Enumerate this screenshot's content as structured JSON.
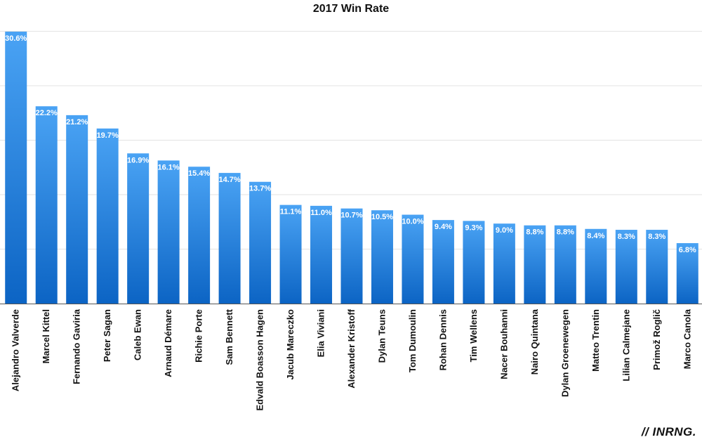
{
  "chart_data": {
    "type": "bar",
    "title": "2017 Win Rate",
    "xlabel": "",
    "ylabel": "",
    "ylim": [
      0,
      31
    ],
    "grid": true,
    "bar_color_top": "#4aa3f4",
    "bar_color_bottom": "#0c64c4",
    "categories": [
      "Alejandro Valverde",
      "Marcel Kittel",
      "Fernando Gaviria",
      "Peter Sagan",
      "Caleb Ewan",
      "Arnaud Démare",
      "Richie Porte",
      "Sam Bennett",
      "Edvald Boasson Hagen",
      "Jacub Mareczko",
      "Elia Viviani",
      "Alexander Kristoff",
      "Dylan Teuns",
      "Tom Dumoulin",
      "Rohan Dennis",
      "Tim Wellens",
      "Nacer Bouhanni",
      "Nairo Quintana",
      "Dylan Groenewegen",
      "Matteo Trentin",
      "Lilian Calmejane",
      "Primož Roglič",
      "Marco Canola"
    ],
    "values": [
      30.6,
      22.2,
      21.2,
      19.7,
      16.9,
      16.1,
      15.4,
      14.7,
      13.7,
      11.1,
      11.0,
      10.7,
      10.5,
      10.0,
      9.4,
      9.3,
      9.0,
      8.8,
      8.8,
      8.4,
      8.3,
      8.3,
      6.8
    ],
    "data_labels": [
      "30.6%",
      "22.2%",
      "21.2%",
      "19.7%",
      "16.9%",
      "16.1%",
      "15.4%",
      "14.7%",
      "13.7%",
      "11.1%",
      "11.0%",
      "10.7%",
      "10.5%",
      "10.0%",
      "9.4%",
      "9.3%",
      "9.0%",
      "8.8%",
      "8.8%",
      "8.4%",
      "8.3%",
      "8.3%",
      "6.8%"
    ]
  },
  "branding": {
    "logo_text": "// INRNG."
  }
}
